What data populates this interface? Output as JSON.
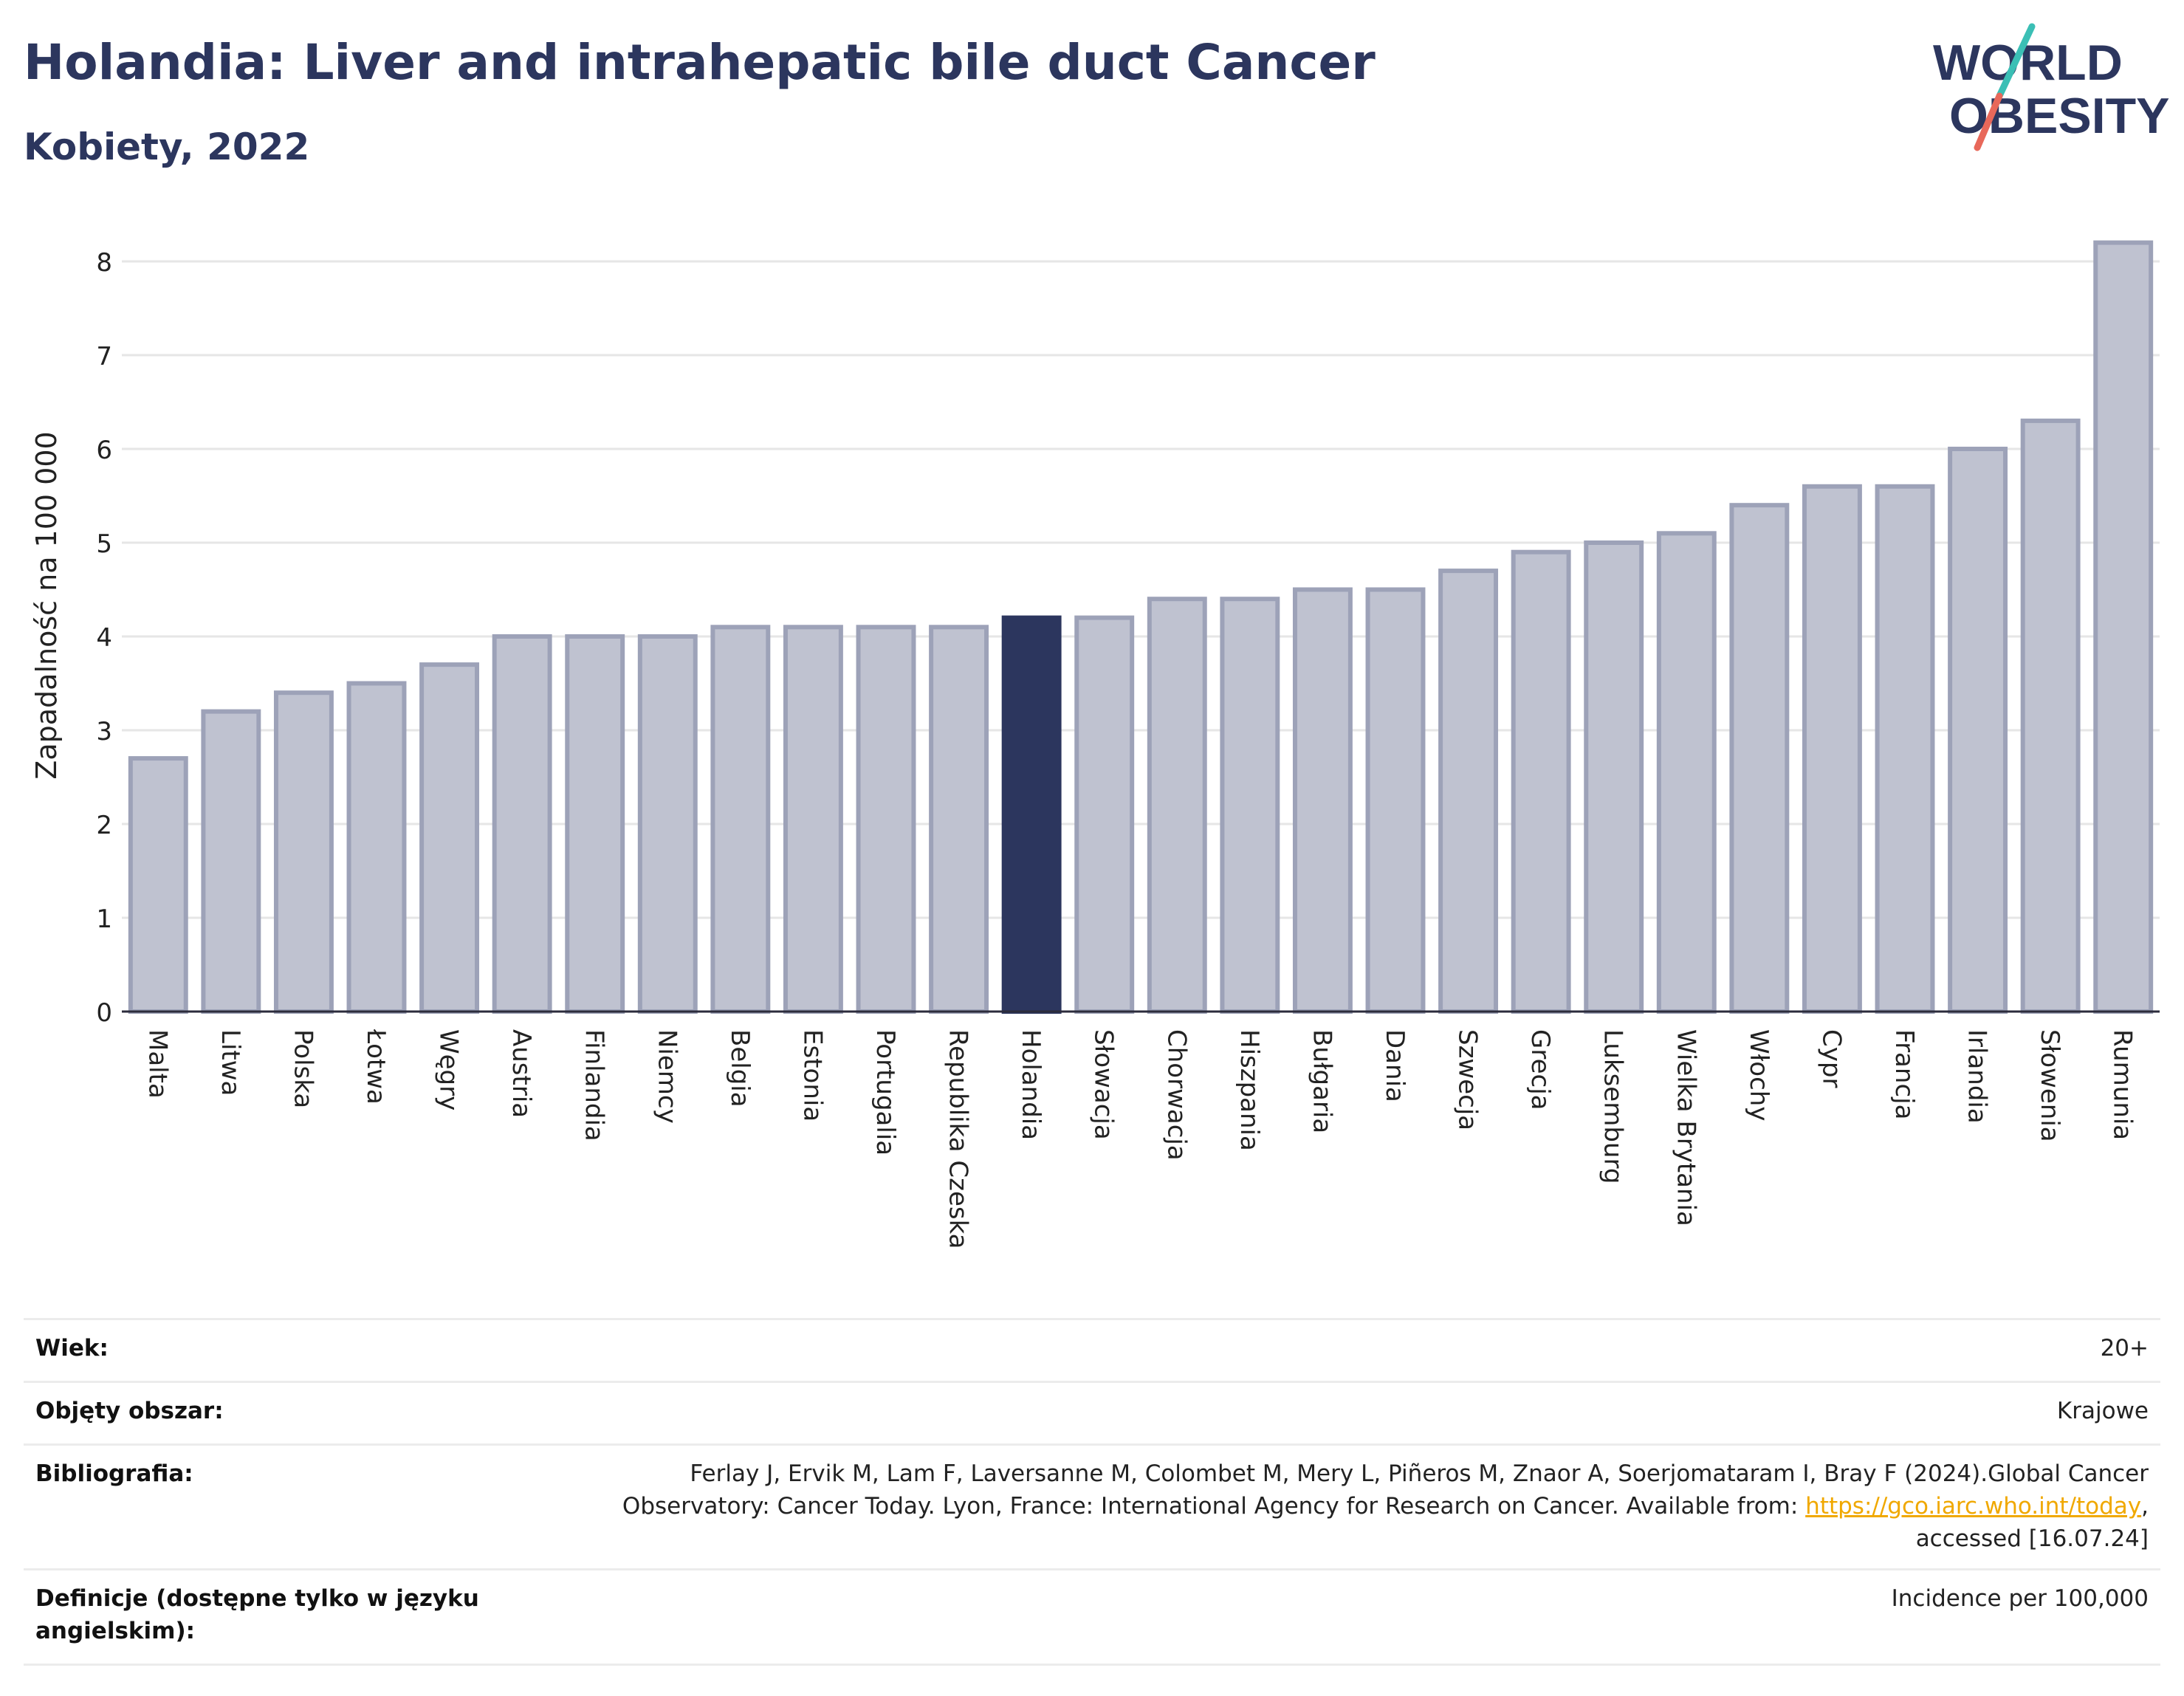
{
  "header": {
    "title": "Holandia: Liver and intrahepatic bile duct Cancer",
    "subtitle": "Kobiety, 2022",
    "logo_line1": "WORLD",
    "logo_line2": "OBESITY"
  },
  "colors": {
    "title": "#2c365e",
    "bar": "#bfc2d0",
    "bar_stroke": "#9da2b8",
    "highlight": "#2c365e",
    "logo_slash_top": "#3bbfb5",
    "logo_slash_bottom": "#e8685a"
  },
  "chart_data": {
    "type": "bar",
    "categories": [
      "Malta",
      "Litwa",
      "Polska",
      "Łotwa",
      "Węgry",
      "Austria",
      "Finlandia",
      "Niemcy",
      "Belgia",
      "Estonia",
      "Portugalia",
      "Republika Czeska",
      "Holandia",
      "Słowacja",
      "Chorwacja",
      "Hiszpania",
      "Bułgaria",
      "Dania",
      "Szwecja",
      "Grecja",
      "Luksemburg",
      "Wielka Brytania",
      "Włochy",
      "Cypr",
      "Francja",
      "Irlandia",
      "Słowenia",
      "Rumunia"
    ],
    "values": [
      2.7,
      3.2,
      3.4,
      3.5,
      3.7,
      4.0,
      4.0,
      4.0,
      4.1,
      4.1,
      4.1,
      4.1,
      4.2,
      4.2,
      4.4,
      4.4,
      4.5,
      4.5,
      4.7,
      4.9,
      5.0,
      5.1,
      5.4,
      5.6,
      5.6,
      6.0,
      6.3,
      8.2
    ],
    "highlight": "Holandia",
    "ylabel": "Zapadalność na 100 000",
    "xlabel": "",
    "ylim": [
      0,
      8.4
    ],
    "yticks": [
      0,
      1,
      2,
      3,
      4,
      5,
      6,
      7,
      8
    ],
    "grid": true
  },
  "info": [
    {
      "label": "Wiek:",
      "value": "20+"
    },
    {
      "label": "Objęty obszar:",
      "value": "Krajowe"
    },
    {
      "label": "Bibliografia:",
      "value_before": "Ferlay J, Ervik M, Lam F, Laversanne M, Colombet M, Mery L, Piñeros M, Znaor A, Soerjomataram I, Bray F (2024).Global Cancer Observatory: Cancer Today. Lyon, France: International Agency for Research on Cancer. Available from: ",
      "link": "https://gco.iarc.who.int/today",
      "value_after": ", accessed [16.07.24]"
    },
    {
      "label": "Definicje (dostępne tylko w języku angielskim):",
      "value": "Incidence per 100,000"
    }
  ]
}
